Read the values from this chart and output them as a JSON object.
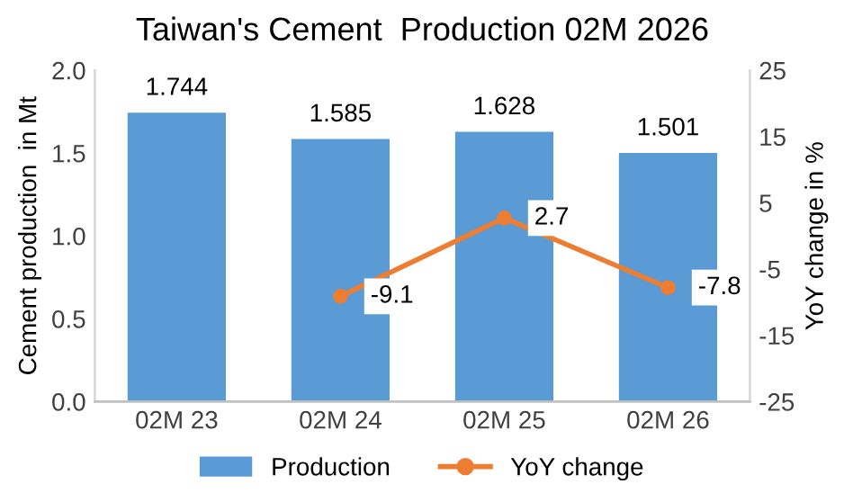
{
  "chart_data": {
    "type": "bar",
    "title": "Taiwan's Cement  Production 02M 2026",
    "ylabel": "Cement production  in Mt",
    "y2label": "YoY change in %",
    "categories": [
      "02M 23",
      "02M 24",
      "02M 25",
      "02M 26"
    ],
    "series": [
      {
        "name": "Production",
        "color": "#5b9bd5",
        "values": [
          1.744,
          1.585,
          1.628,
          1.501
        ]
      },
      {
        "name": "YoY change",
        "type": "line",
        "axis": "y2",
        "color": "#ed7d31",
        "marker": "circle",
        "values": [
          null,
          -9.1,
          2.7,
          -7.8
        ]
      }
    ],
    "ylim": [
      0,
      2.0
    ],
    "yticks": [
      {
        "value": 0,
        "label": "0.0"
      },
      {
        "value": 0.5,
        "label": "0.5"
      },
      {
        "value": 1.0,
        "label": "1.0"
      },
      {
        "value": 1.5,
        "label": "1.5"
      },
      {
        "value": 2.0,
        "label": "2.0"
      }
    ],
    "y2lim": [
      -25,
      25
    ],
    "y2ticks": [
      -25,
      -15,
      -5,
      5,
      15,
      25
    ],
    "data_labels": true,
    "legend": "bottom",
    "grid": false
  }
}
